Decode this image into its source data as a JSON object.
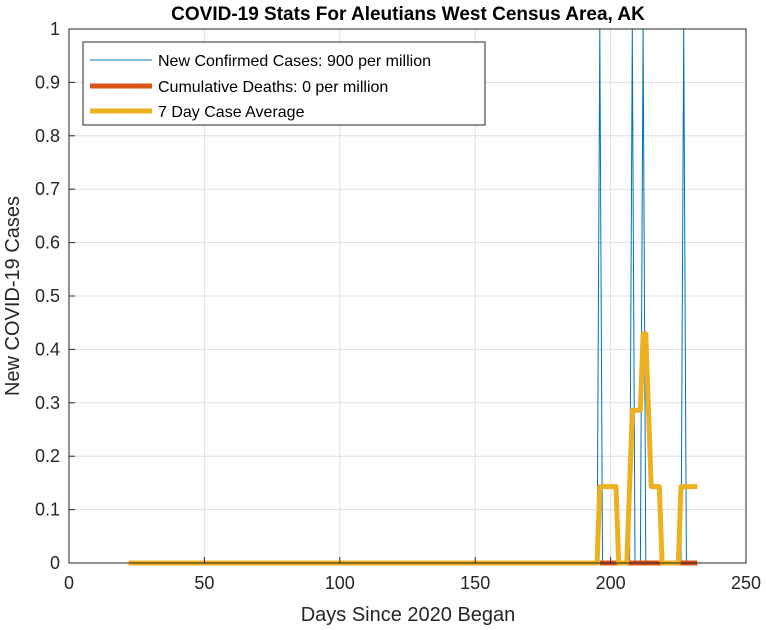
{
  "chart_data": {
    "type": "line",
    "title": "COVID-19 Stats For Aleutians West Census Area, AK",
    "xlabel": "Days Since 2020 Began",
    "ylabel": "New COVID-19 Cases",
    "xlim": [
      0,
      250
    ],
    "ylim": [
      0,
      1
    ],
    "xticks": [
      "0",
      "50",
      "100",
      "150",
      "200",
      "250"
    ],
    "yticks": [
      "0",
      "0.1",
      "0.2",
      "0.3",
      "0.4",
      "0.5",
      "0.6",
      "0.7",
      "0.8",
      "0.9",
      "1"
    ],
    "grid": true,
    "legend_position": "top-left",
    "series": [
      {
        "name": "New Confirmed Cases: 900 per million",
        "color": "#0072BD",
        "x": [
          22,
          195,
          196,
          197,
          207,
          208,
          209,
          211,
          212,
          213,
          226,
          227,
          228,
          232
        ],
        "y": [
          0,
          0,
          1,
          0,
          0,
          1,
          0,
          0,
          1,
          0,
          0,
          1,
          0,
          0
        ]
      },
      {
        "name": "Cumulative Deaths: 0 per million",
        "color": "#D95319",
        "x": [
          196,
          232
        ],
        "y": [
          0,
          0
        ]
      },
      {
        "name": "7 Day Case Average",
        "color": "#EDB120",
        "x": [
          22,
          195,
          196,
          202,
          203,
          206,
          207,
          208,
          209,
          210,
          211,
          212,
          213,
          214,
          215,
          216,
          218,
          219,
          225,
          226,
          232
        ],
        "y": [
          0,
          0,
          0.143,
          0.143,
          0,
          0,
          0.143,
          0.286,
          0.286,
          0.286,
          0.286,
          0.429,
          0.429,
          0.286,
          0.143,
          0.143,
          0.143,
          0,
          0,
          0.143,
          0.143
        ]
      }
    ]
  }
}
